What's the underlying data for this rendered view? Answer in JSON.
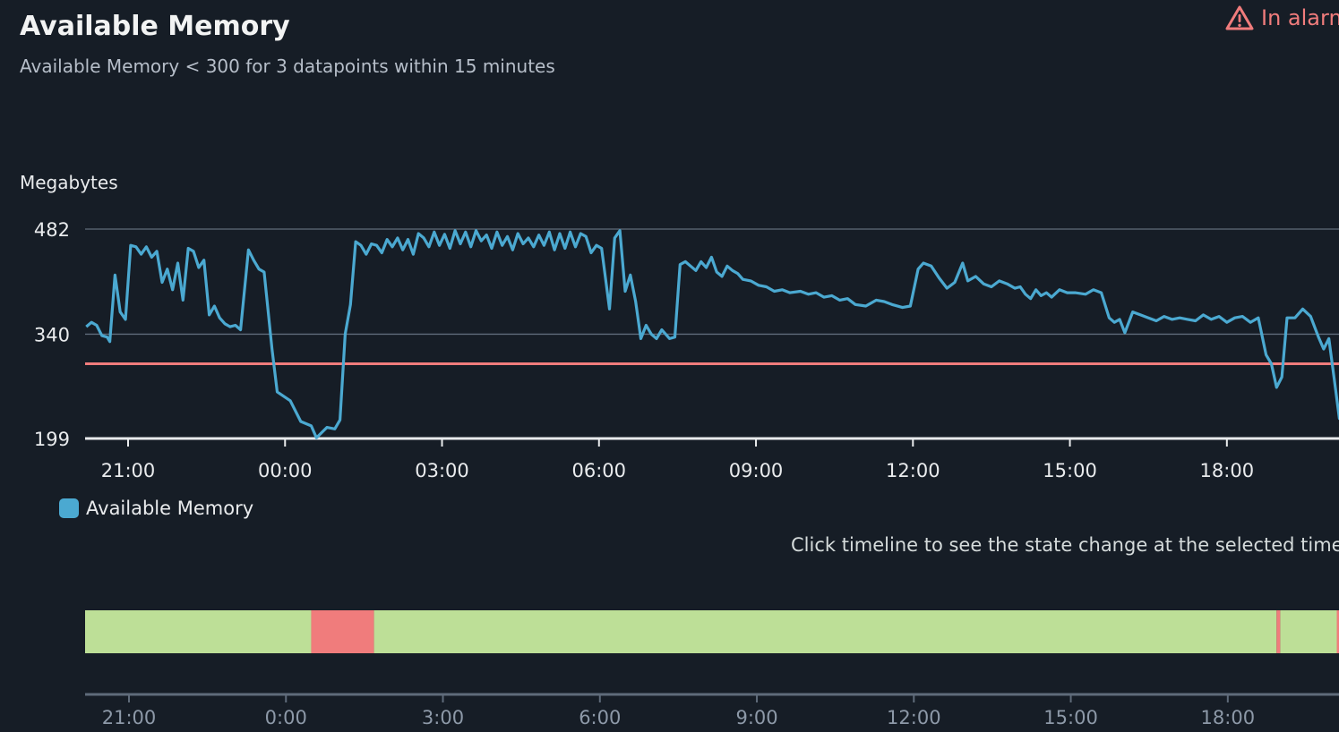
{
  "widget": {
    "title": "Available Memory",
    "subtitle": "Available Memory < 300 for 3 datapoints within 15 minutes",
    "status": "In alarm",
    "status_icon": "warning-triangle-icon",
    "status_color": "#f07c7c",
    "hint": "Click timeline to see the state change at the selected time."
  },
  "chart_data": {
    "type": "line",
    "ylabel": "Megabytes",
    "y_ticks": [
      199,
      340,
      482
    ],
    "ylim": [
      199,
      482
    ],
    "threshold": 300,
    "threshold_color": "#f07c7c",
    "x_ticks": [
      {
        "hour": 21,
        "label": "21:00"
      },
      {
        "hour": 24,
        "label": "00:00"
      },
      {
        "hour": 27,
        "label": "03:00"
      },
      {
        "hour": 30,
        "label": "06:00"
      },
      {
        "hour": 33,
        "label": "09:00"
      },
      {
        "hour": 36,
        "label": "12:00"
      },
      {
        "hour": 39,
        "label": "15:00"
      },
      {
        "hour": 42,
        "label": "18:00"
      }
    ],
    "series": [
      {
        "name": "Available Memory",
        "color": "#4ba9d1",
        "points": [
          [
            20.2,
            350
          ],
          [
            20.3,
            356
          ],
          [
            20.4,
            352
          ],
          [
            20.5,
            338
          ],
          [
            20.6,
            336
          ],
          [
            20.65,
            330
          ],
          [
            20.75,
            420
          ],
          [
            20.85,
            370
          ],
          [
            20.95,
            360
          ],
          [
            21.05,
            460
          ],
          [
            21.15,
            458
          ],
          [
            21.25,
            448
          ],
          [
            21.35,
            458
          ],
          [
            21.45,
            444
          ],
          [
            21.55,
            452
          ],
          [
            21.65,
            410
          ],
          [
            21.75,
            428
          ],
          [
            21.85,
            400
          ],
          [
            21.95,
            436
          ],
          [
            22.05,
            386
          ],
          [
            22.15,
            456
          ],
          [
            22.25,
            452
          ],
          [
            22.35,
            430
          ],
          [
            22.45,
            440
          ],
          [
            22.55,
            366
          ],
          [
            22.65,
            378
          ],
          [
            22.75,
            362
          ],
          [
            22.85,
            354
          ],
          [
            22.95,
            350
          ],
          [
            23.05,
            352
          ],
          [
            23.15,
            346
          ],
          [
            23.3,
            454
          ],
          [
            23.4,
            440
          ],
          [
            23.5,
            428
          ],
          [
            23.6,
            424
          ],
          [
            23.75,
            320
          ],
          [
            23.85,
            262
          ],
          [
            24.1,
            250
          ],
          [
            24.3,
            222
          ],
          [
            24.5,
            216
          ],
          [
            24.6,
            200
          ],
          [
            24.8,
            214
          ],
          [
            24.95,
            212
          ],
          [
            25.05,
            224
          ],
          [
            25.15,
            340
          ],
          [
            25.25,
            380
          ],
          [
            25.35,
            465
          ],
          [
            25.45,
            460
          ],
          [
            25.55,
            448
          ],
          [
            25.65,
            462
          ],
          [
            25.75,
            460
          ],
          [
            25.85,
            450
          ],
          [
            25.95,
            468
          ],
          [
            26.05,
            458
          ],
          [
            26.15,
            470
          ],
          [
            26.25,
            454
          ],
          [
            26.35,
            468
          ],
          [
            26.45,
            448
          ],
          [
            26.55,
            476
          ],
          [
            26.65,
            470
          ],
          [
            26.75,
            458
          ],
          [
            26.85,
            478
          ],
          [
            26.95,
            460
          ],
          [
            27.05,
            475
          ],
          [
            27.15,
            456
          ],
          [
            27.25,
            480
          ],
          [
            27.35,
            462
          ],
          [
            27.45,
            478
          ],
          [
            27.55,
            458
          ],
          [
            27.65,
            480
          ],
          [
            27.75,
            466
          ],
          [
            27.85,
            474
          ],
          [
            27.95,
            456
          ],
          [
            28.05,
            478
          ],
          [
            28.15,
            460
          ],
          [
            28.25,
            472
          ],
          [
            28.35,
            454
          ],
          [
            28.45,
            476
          ],
          [
            28.55,
            462
          ],
          [
            28.65,
            470
          ],
          [
            28.75,
            458
          ],
          [
            28.85,
            474
          ],
          [
            28.95,
            460
          ],
          [
            29.05,
            478
          ],
          [
            29.15,
            454
          ],
          [
            29.25,
            476
          ],
          [
            29.35,
            456
          ],
          [
            29.45,
            478
          ],
          [
            29.55,
            458
          ],
          [
            29.65,
            476
          ],
          [
            29.75,
            472
          ],
          [
            29.85,
            450
          ],
          [
            29.95,
            460
          ],
          [
            30.05,
            456
          ],
          [
            30.2,
            374
          ],
          [
            30.3,
            470
          ],
          [
            30.4,
            480
          ],
          [
            30.5,
            398
          ],
          [
            30.6,
            420
          ],
          [
            30.7,
            384
          ],
          [
            30.8,
            334
          ],
          [
            30.9,
            352
          ],
          [
            31.0,
            340
          ],
          [
            31.1,
            334
          ],
          [
            31.2,
            346
          ],
          [
            31.35,
            334
          ],
          [
            31.45,
            336
          ],
          [
            31.55,
            434
          ],
          [
            31.65,
            438
          ],
          [
            31.75,
            432
          ],
          [
            31.85,
            426
          ],
          [
            31.95,
            438
          ],
          [
            32.05,
            430
          ],
          [
            32.15,
            444
          ],
          [
            32.25,
            424
          ],
          [
            32.35,
            418
          ],
          [
            32.45,
            432
          ],
          [
            32.55,
            426
          ],
          [
            32.65,
            422
          ],
          [
            32.75,
            414
          ],
          [
            32.9,
            412
          ],
          [
            33.05,
            406
          ],
          [
            33.2,
            404
          ],
          [
            33.35,
            398
          ],
          [
            33.5,
            400
          ],
          [
            33.65,
            396
          ],
          [
            33.85,
            398
          ],
          [
            34.0,
            394
          ],
          [
            34.15,
            396
          ],
          [
            34.3,
            390
          ],
          [
            34.45,
            392
          ],
          [
            34.6,
            386
          ],
          [
            34.75,
            388
          ],
          [
            34.9,
            380
          ],
          [
            35.1,
            378
          ],
          [
            35.3,
            386
          ],
          [
            35.45,
            384
          ],
          [
            35.6,
            380
          ],
          [
            35.8,
            376
          ],
          [
            35.95,
            378
          ],
          [
            36.1,
            428
          ],
          [
            36.2,
            436
          ],
          [
            36.35,
            432
          ],
          [
            36.5,
            416
          ],
          [
            36.65,
            402
          ],
          [
            36.8,
            410
          ],
          [
            36.95,
            436
          ],
          [
            37.05,
            412
          ],
          [
            37.2,
            418
          ],
          [
            37.35,
            408
          ],
          [
            37.5,
            404
          ],
          [
            37.65,
            412
          ],
          [
            37.8,
            408
          ],
          [
            37.95,
            402
          ],
          [
            38.05,
            404
          ],
          [
            38.15,
            394
          ],
          [
            38.25,
            388
          ],
          [
            38.35,
            400
          ],
          [
            38.45,
            392
          ],
          [
            38.55,
            396
          ],
          [
            38.65,
            390
          ],
          [
            38.8,
            400
          ],
          [
            38.95,
            396
          ],
          [
            39.1,
            396
          ],
          [
            39.3,
            394
          ],
          [
            39.45,
            400
          ],
          [
            39.6,
            396
          ],
          [
            39.75,
            362
          ],
          [
            39.85,
            356
          ],
          [
            39.95,
            360
          ],
          [
            40.05,
            342
          ],
          [
            40.2,
            370
          ],
          [
            40.35,
            366
          ],
          [
            40.5,
            362
          ],
          [
            40.65,
            358
          ],
          [
            40.8,
            364
          ],
          [
            40.95,
            360
          ],
          [
            41.1,
            362
          ],
          [
            41.25,
            360
          ],
          [
            41.4,
            358
          ],
          [
            41.55,
            366
          ],
          [
            41.7,
            360
          ],
          [
            41.85,
            364
          ],
          [
            42.0,
            356
          ],
          [
            42.15,
            362
          ],
          [
            42.3,
            364
          ],
          [
            42.45,
            356
          ],
          [
            42.6,
            362
          ],
          [
            42.75,
            312
          ],
          [
            42.85,
            300
          ],
          [
            42.95,
            268
          ],
          [
            43.05,
            282
          ],
          [
            43.15,
            362
          ],
          [
            43.3,
            362
          ],
          [
            43.45,
            374
          ],
          [
            43.6,
            364
          ],
          [
            43.75,
            336
          ],
          [
            43.85,
            320
          ],
          [
            43.95,
            334
          ],
          [
            44.05,
            280
          ],
          [
            44.15,
            226
          ],
          [
            44.25,
            236
          ]
        ]
      }
    ],
    "timeline": [
      {
        "start": 20.15,
        "end": 24.5,
        "state": "ok",
        "color": "#bddf97"
      },
      {
        "start": 24.5,
        "end": 25.7,
        "state": "alarm",
        "color": "#f07c7c"
      },
      {
        "start": 25.7,
        "end": 42.95,
        "state": "ok",
        "color": "#bddf97"
      },
      {
        "start": 42.95,
        "end": 43.02,
        "state": "alarm",
        "color": "#f07c7c"
      },
      {
        "start": 43.02,
        "end": 44.1,
        "state": "ok",
        "color": "#bddf97"
      },
      {
        "start": 44.1,
        "end": 44.2,
        "state": "alarm",
        "color": "#f07c7c"
      }
    ],
    "timeline_ticks": [
      {
        "hour": 21,
        "label": "21:00"
      },
      {
        "hour": 24,
        "label": "0:00"
      },
      {
        "hour": 27,
        "label": "3:00"
      },
      {
        "hour": 30,
        "label": "6:00"
      },
      {
        "hour": 33,
        "label": "9:00"
      },
      {
        "hour": 36,
        "label": "12:00"
      },
      {
        "hour": 39,
        "label": "15:00"
      },
      {
        "hour": 42,
        "label": "18:00"
      }
    ]
  }
}
